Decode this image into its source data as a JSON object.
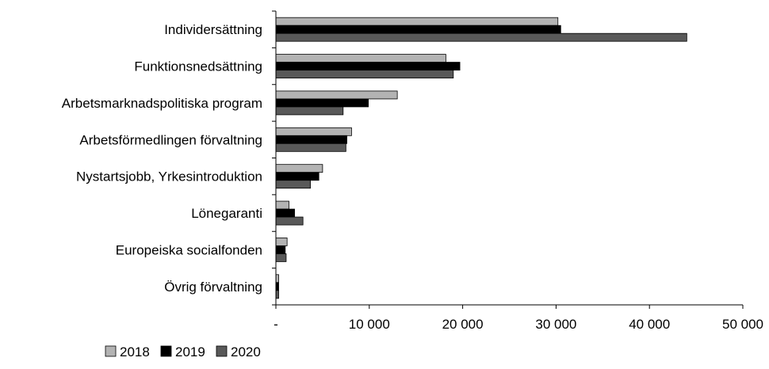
{
  "chart_data": {
    "type": "bar",
    "orientation": "horizontal",
    "title": "",
    "xlabel": "",
    "ylabel": "",
    "categories": [
      "Individersättning",
      "Funktionsnedsättning",
      "Arbetsmarknadspolitiska program",
      "Arbetsförmedlingen förvaltning",
      "Nystartsjobb, Yrkesintroduktion",
      "Lönegaranti",
      "Europeiska socialfonden",
      "Övrig förvaltning"
    ],
    "series": [
      {
        "name": "2018",
        "color": "#b3b3b3",
        "values": [
          30200,
          18200,
          13000,
          8100,
          5000,
          1400,
          1200,
          300
        ]
      },
      {
        "name": "2019",
        "color": "#000000",
        "values": [
          30500,
          19700,
          9900,
          7600,
          4600,
          2000,
          1000,
          300
        ]
      },
      {
        "name": "2020",
        "color": "#595959",
        "values": [
          44000,
          19000,
          7200,
          7500,
          3700,
          2900,
          1100,
          300
        ]
      }
    ],
    "xlim": [
      0,
      50000
    ],
    "xticks": [
      0,
      10000,
      20000,
      30000,
      40000,
      50000
    ],
    "xtick_labels": [
      "-",
      "10 000",
      "20 000",
      "30 000",
      "40 000",
      "50 000"
    ],
    "grid": false,
    "legend_position": "bottom-left"
  }
}
